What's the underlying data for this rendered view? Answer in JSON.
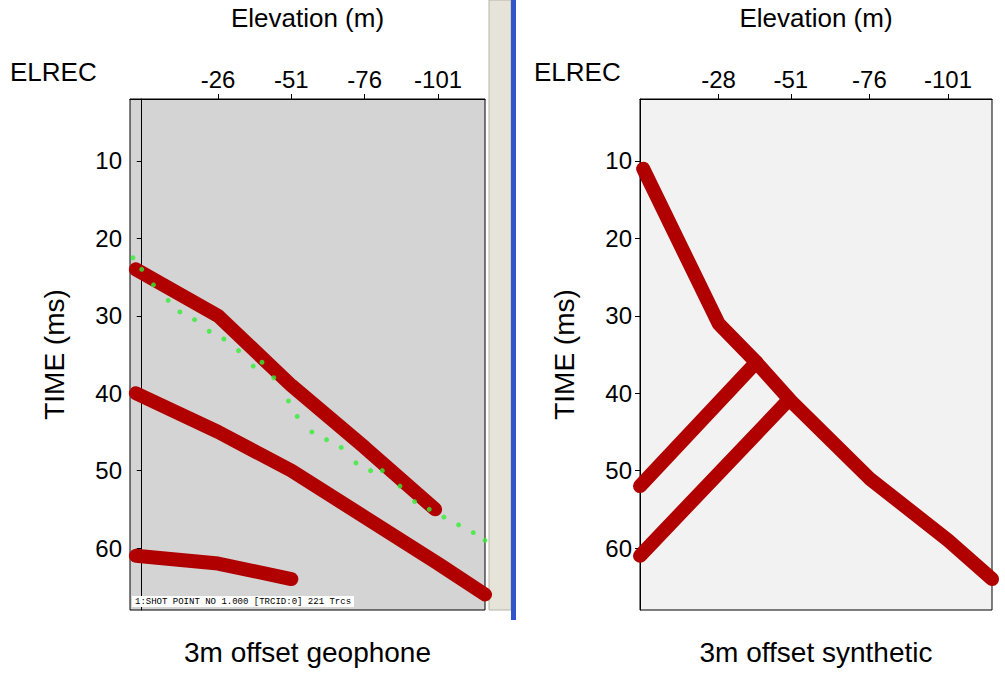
{
  "chart_data": [
    {
      "type": "line",
      "title": "3m offset geophone",
      "x_label": "Elevation (m)",
      "y_label": "TIME (ms)",
      "annotations": [
        "ELREC",
        "1:SHOT POINT NO 1.000 [TRCID:0] 221 Trcs"
      ],
      "xlim": [
        4,
        -117
      ],
      "xticks": [
        -26,
        -51,
        -76,
        -101
      ],
      "ylim": [
        68,
        2
      ],
      "yticks": [
        10,
        20,
        30,
        40,
        50,
        60
      ],
      "grid": false,
      "series": [
        {
          "type": "line",
          "color": "#b00000",
          "line_style": "solid",
          "values": [
            [
              2,
              24
            ],
            [
              -26,
              30
            ],
            [
              -51,
              39
            ],
            [
              -76,
              47
            ],
            [
              -100,
              55
            ]
          ]
        },
        {
          "type": "line",
          "color": "#b00000",
          "line_style": "solid",
          "values": [
            [
              2,
              40
            ],
            [
              -26,
              45
            ],
            [
              -51,
              50
            ],
            [
              -76,
              56
            ],
            [
              -101,
              62
            ],
            [
              -117,
              66
            ]
          ]
        },
        {
          "type": "line",
          "color": "#b00000",
          "line_style": "solid",
          "values": [
            [
              2,
              61
            ],
            [
              -26,
              62
            ],
            [
              -51,
              64
            ]
          ]
        },
        {
          "type": "scatter",
          "color": "#33ee33",
          "marker": "circle",
          "values": [
            [
              3,
              22.5
            ],
            [
              0,
              24
            ],
            [
              -4,
              26
            ],
            [
              -9,
              28
            ],
            [
              -13,
              29.5
            ],
            [
              -18,
              30.5
            ],
            [
              -23,
              32
            ],
            [
              -28,
              33
            ],
            [
              -33,
              34.5
            ],
            [
              -38,
              36.5
            ],
            [
              -41,
              36
            ],
            [
              -45,
              38
            ],
            [
              -50,
              41
            ],
            [
              -53,
              43
            ],
            [
              -58,
              45
            ],
            [
              -63,
              46
            ],
            [
              -68,
              47
            ],
            [
              -73,
              49
            ],
            [
              -78,
              50
            ],
            [
              -82,
              50
            ],
            [
              -88,
              52
            ],
            [
              -93,
              54
            ],
            [
              -98,
              55
            ],
            [
              -103,
              56
            ],
            [
              -108,
              57
            ],
            [
              -113,
              58
            ],
            [
              -117,
              59
            ]
          ]
        }
      ]
    },
    {
      "type": "line",
      "title": "3m offset synthetic",
      "x_label": "Elevation (m)",
      "y_label": "TIME (ms)",
      "annotations": [
        "ELREC"
      ],
      "xlim": [
        -3,
        -115
      ],
      "xticks": [
        -28,
        -51,
        -76,
        -101
      ],
      "ylim": [
        68,
        2
      ],
      "yticks": [
        10,
        20,
        30,
        40,
        50,
        60
      ],
      "grid": false,
      "series": [
        {
          "type": "line",
          "color": "#b00000",
          "line_style": "solid",
          "values": [
            [
              -4,
              11
            ],
            [
              -28,
              31
            ],
            [
              -40,
              36
            ],
            [
              -51,
              41
            ],
            [
              -76,
              51
            ],
            [
              -101,
              59
            ],
            [
              -115,
              64
            ]
          ]
        },
        {
          "type": "line",
          "color": "#b00000",
          "line_style": "solid",
          "values": [
            [
              -40,
              36
            ],
            [
              -3,
              52
            ]
          ]
        },
        {
          "type": "line",
          "color": "#b00000",
          "line_style": "solid",
          "values": [
            [
              -50,
              41
            ],
            [
              -3,
              61
            ]
          ]
        }
      ]
    }
  ]
}
